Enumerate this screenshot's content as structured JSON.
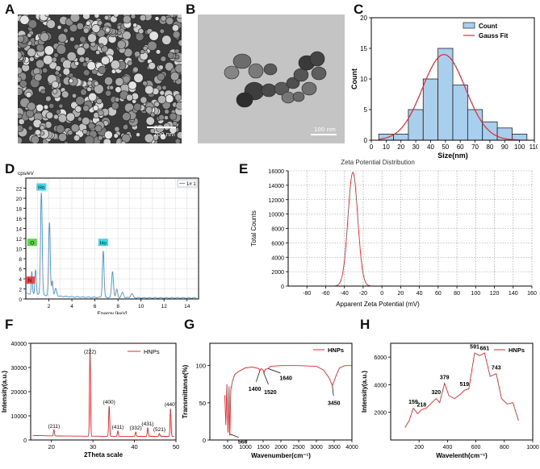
{
  "panels": {
    "A": "A",
    "B": "B",
    "C": "C",
    "D": "D",
    "E": "E",
    "F": "F",
    "G": "G",
    "H": "H"
  },
  "sem": {
    "scale_label": "200 nm"
  },
  "tem": {
    "scale_label": "100 nm"
  },
  "chart_data": [
    {
      "id": "C",
      "type": "bar",
      "categories": [
        "5-15",
        "15-25",
        "25-35",
        "35-45",
        "45-55",
        "55-65",
        "65-75",
        "75-85",
        "85-95",
        "95-105"
      ],
      "bin_centers": [
        10,
        20,
        30,
        40,
        50,
        60,
        70,
        80,
        90,
        100
      ],
      "values": [
        1,
        1,
        5,
        10,
        15,
        9,
        5,
        3,
        2,
        1
      ],
      "fit": {
        "mean": 49,
        "sigma": 14.5,
        "amp": 14
      },
      "xlabel": "Size(nm)",
      "ylabel": "Count",
      "xlim": [
        0,
        110
      ],
      "ylim": [
        0,
        20
      ],
      "xticks": [
        "0",
        "10",
        "20",
        "30",
        "40",
        "50",
        "60",
        "70",
        "80",
        "90",
        "100",
        "110"
      ],
      "yticks": [
        "0",
        "5",
        "10",
        "15",
        "20"
      ],
      "legend": [
        "Count",
        "Gauss Fit"
      ],
      "colors": {
        "bar": "#a9cfee",
        "fit": "#e8262b"
      }
    },
    {
      "id": "D",
      "type": "line",
      "unit_label": "cps/eV",
      "legend": "1# 1",
      "xlabel": "Energy [keV]",
      "xlim": [
        0,
        15
      ],
      "ylim": [
        0,
        24
      ],
      "xticks": [
        "2",
        "4",
        "6",
        "8",
        "10",
        "12",
        "14"
      ],
      "yticks": [
        "0",
        "2",
        "4",
        "6",
        "8",
        "10",
        "12",
        "14",
        "16",
        "18",
        "20",
        "22"
      ],
      "peaks": [
        {
          "x": 0.52,
          "y": 4.5,
          "w": 0.05
        },
        {
          "x": 0.85,
          "y": 5,
          "w": 0.06
        },
        {
          "x": 1.35,
          "y": 20.5,
          "w": 0.07
        },
        {
          "x": 2.05,
          "y": 14.5,
          "w": 0.07
        },
        {
          "x": 2.3,
          "y": 3,
          "w": 0.06
        },
        {
          "x": 2.6,
          "y": 1.5,
          "w": 0.08
        },
        {
          "x": 6.72,
          "y": 9.3,
          "w": 0.07
        },
        {
          "x": 7.53,
          "y": 5.2,
          "w": 0.08
        },
        {
          "x": 7.9,
          "y": 1.6,
          "w": 0.08
        },
        {
          "x": 8.4,
          "y": 1.0,
          "w": 0.1
        },
        {
          "x": 9.2,
          "y": 0.8,
          "w": 0.1
        }
      ],
      "labels": [
        {
          "text": "Ho",
          "x": 1.35,
          "y": 22,
          "color": "#3fd6e6"
        },
        {
          "text": "O",
          "x": 0.55,
          "y": 11,
          "color": "#5ad64a"
        },
        {
          "text": "Ho",
          "x": 6.72,
          "y": 11,
          "color": "#3fd6e6"
        },
        {
          "text": "N",
          "x": 0.35,
          "y": 3.5,
          "color": "#e34848"
        }
      ],
      "colors": {
        "line": "#4b8fd0"
      }
    },
    {
      "id": "E",
      "type": "line",
      "title": "Zeta Potential Distribution",
      "xlabel": "Apparent Zeta Potential (mV)",
      "ylabel": "Total Counts",
      "xlim": [
        -100,
        160
      ],
      "ylim": [
        0,
        16000
      ],
      "xticks": [
        "-80",
        "-60",
        "-40",
        "-20",
        "0",
        "20",
        "40",
        "60",
        "80",
        "100",
        "120",
        "140",
        "160"
      ],
      "yticks": [
        "0",
        "2000",
        "4000",
        "6000",
        "8000",
        "10000",
        "12000",
        "14000",
        "16000"
      ],
      "peak": {
        "center": -31,
        "height": 15800,
        "sigma": 5.2
      },
      "colors": {
        "line": "#e8262b"
      }
    },
    {
      "id": "F",
      "type": "line",
      "xlabel": "2Theta scale",
      "ylabel": "Intensity(a.u.)",
      "xlim": [
        15,
        50
      ],
      "ylim": [
        0,
        40000
      ],
      "xticks": [
        "20",
        "30",
        "40",
        "50"
      ],
      "yticks": [
        "0",
        "10000",
        "20000",
        "30000",
        "40000"
      ],
      "legend": "HNPs",
      "peaks": [
        {
          "x": 20.6,
          "y": 2500,
          "label": "(211)"
        },
        {
          "x": 29.3,
          "y": 36500,
          "label": "(222)"
        },
        {
          "x": 33.9,
          "y": 12500,
          "label": "(400)"
        },
        {
          "x": 36.0,
          "y": 2200,
          "label": "(411)"
        },
        {
          "x": 40.3,
          "y": 1800,
          "label": "(332)"
        },
        {
          "x": 43.2,
          "y": 3500,
          "label": "(431)"
        },
        {
          "x": 46.0,
          "y": 1200,
          "label": "(521)"
        },
        {
          "x": 48.7,
          "y": 11500,
          "label": "(440)"
        }
      ],
      "colors": {
        "line": "#e8262b"
      }
    },
    {
      "id": "G",
      "type": "line",
      "xlabel": "Wavenumber(cm⁻¹)",
      "ylabel": "Transmittanse(%)",
      "xlim": [
        0,
        4000
      ],
      "ylim": [
        0,
        130
      ],
      "xticks": [
        "500",
        "1000",
        "1500",
        "2000",
        "2500",
        "3000",
        "3500",
        "4000"
      ],
      "yticks": [
        "0",
        "50",
        "100"
      ],
      "legend": "HNPs",
      "annotations": [
        {
          "text": "1400",
          "x": 1400,
          "y": 92
        },
        {
          "text": "1520",
          "x": 1520,
          "y": 90
        },
        {
          "text": "1640",
          "x": 1640,
          "y": 96
        },
        {
          "text": "3450",
          "x": 3450,
          "y": 73
        },
        {
          "text": "560",
          "x": 560,
          "y": 8
        }
      ],
      "colors": {
        "line": "#e8262b"
      }
    },
    {
      "id": "H",
      "type": "line",
      "xlabel": "Wavelenth(cm⁻¹)",
      "ylabel": "Intensity(a.u.)",
      "xlim": [
        0,
        1000
      ],
      "ylim": [
        0,
        7000
      ],
      "xticks": [
        "200",
        "400",
        "600",
        "800",
        "1000"
      ],
      "yticks": [
        "2000",
        "4000",
        "6000"
      ],
      "legend": "HNPs",
      "points": [
        [
          100,
          900
        ],
        [
          130,
          1400
        ],
        [
          159,
          2300
        ],
        [
          190,
          1900
        ],
        [
          218,
          2200
        ],
        [
          250,
          2300
        ],
        [
          290,
          2700
        ],
        [
          320,
          3000
        ],
        [
          345,
          2700
        ],
        [
          379,
          4100
        ],
        [
          410,
          3200
        ],
        [
          450,
          3000
        ],
        [
          490,
          3300
        ],
        [
          519,
          3600
        ],
        [
          550,
          3700
        ],
        [
          591,
          6300
        ],
        [
          625,
          6100
        ],
        [
          661,
          6300
        ],
        [
          700,
          4600
        ],
        [
          743,
          4800
        ],
        [
          780,
          3000
        ],
        [
          820,
          2600
        ],
        [
          860,
          2700
        ],
        [
          900,
          1400
        ]
      ],
      "annotations": [
        {
          "text": "159",
          "x": 159,
          "y": 2500
        },
        {
          "text": "218",
          "x": 218,
          "y": 2300
        },
        {
          "text": "320",
          "x": 320,
          "y": 3200
        },
        {
          "text": "379",
          "x": 379,
          "y": 4300
        },
        {
          "text": "519",
          "x": 519,
          "y": 3800
        },
        {
          "text": "591",
          "x": 591,
          "y": 6500
        },
        {
          "text": "661",
          "x": 661,
          "y": 6400
        },
        {
          "text": "743",
          "x": 743,
          "y": 5000
        }
      ],
      "colors": {
        "line": "#e8262b"
      }
    }
  ]
}
